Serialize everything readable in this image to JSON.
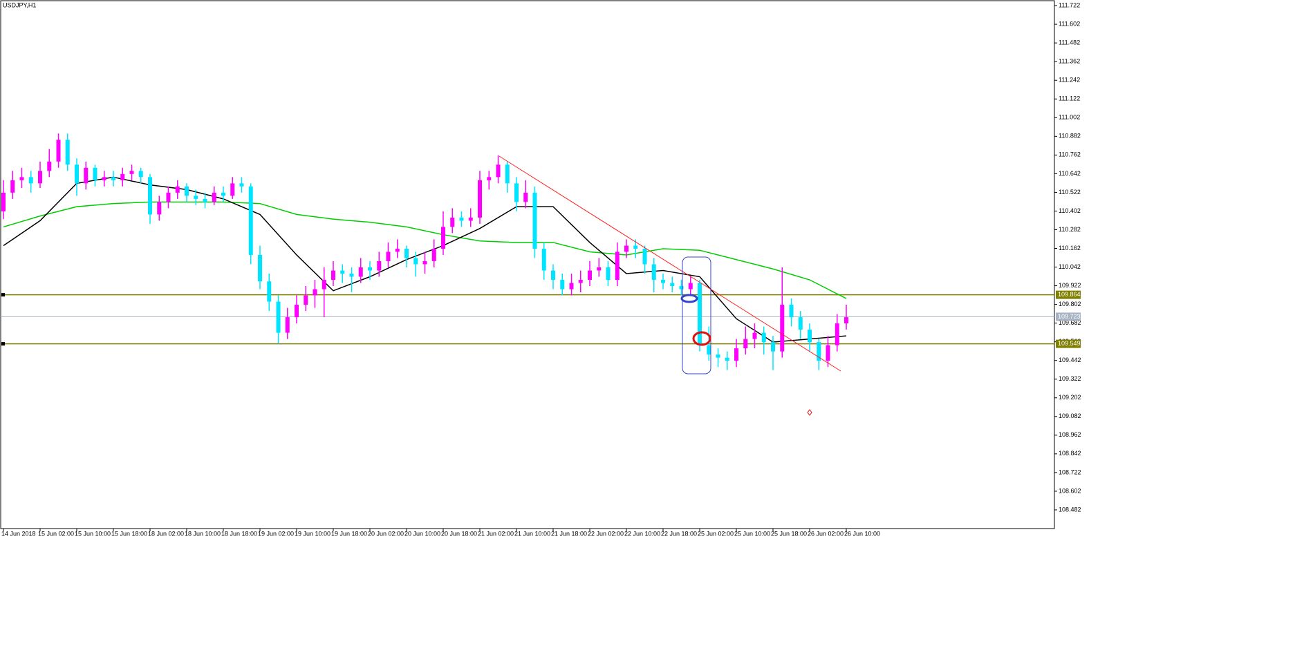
{
  "chart_data": {
    "type": "candlestick",
    "title": "USDJPY,H1",
    "up_color": "#ff00ff",
    "down_color": "#00e5ff",
    "ylim": [
      108.362,
      111.749
    ],
    "yticks": [
      111.722,
      111.602,
      111.482,
      111.362,
      111.242,
      111.122,
      111.002,
      110.882,
      110.762,
      110.642,
      110.522,
      110.402,
      110.282,
      110.162,
      110.042,
      109.922,
      109.802,
      109.682,
      109.562,
      109.442,
      109.322,
      109.202,
      109.082,
      108.962,
      108.842,
      108.722,
      108.602,
      108.482
    ],
    "xticks": [
      {
        "value": 0,
        "label": "14 Jun 2018"
      },
      {
        "value": 4,
        "label": "15 Jun 02:00"
      },
      {
        "value": 8,
        "label": "15 Jun 10:00"
      },
      {
        "value": 12,
        "label": "15 Jun 18:00"
      },
      {
        "value": 16,
        "label": "18 Jun 02:00"
      },
      {
        "value": 20,
        "label": "18 Jun 10:00"
      },
      {
        "value": 24,
        "label": "18 Jun 18:00"
      },
      {
        "value": 28,
        "label": "19 Jun 02:00"
      },
      {
        "value": 32,
        "label": "19 Jun 10:00"
      },
      {
        "value": 36,
        "label": "19 Jun 18:00"
      },
      {
        "value": 40,
        "label": "20 Jun 02:00"
      },
      {
        "value": 44,
        "label": "20 Jun 10:00"
      },
      {
        "value": 48,
        "label": "20 Jun 18:00"
      },
      {
        "value": 52,
        "label": "21 Jun 02:00"
      },
      {
        "value": 56,
        "label": "21 Jun 10:00"
      },
      {
        "value": 60,
        "label": "21 Jun 18:00"
      },
      {
        "value": 64,
        "label": "22 Jun 02:00"
      },
      {
        "value": 68,
        "label": "22 Jun 10:00"
      },
      {
        "value": 72,
        "label": "22 Jun 18:00"
      },
      {
        "value": 76,
        "label": "25 Jun 02:00"
      },
      {
        "value": 80,
        "label": "25 Jun 10:00"
      },
      {
        "value": 84,
        "label": "25 Jun 18:00"
      },
      {
        "value": 88,
        "label": "26 Jun 02:00"
      },
      {
        "value": 92,
        "label": "26 Jun 10:00"
      }
    ],
    "candles": [
      [
        110.4,
        110.6,
        110.35,
        110.52
      ],
      [
        110.52,
        110.66,
        110.48,
        110.6
      ],
      [
        110.6,
        110.68,
        110.55,
        110.62
      ],
      [
        110.62,
        110.66,
        110.52,
        110.58
      ],
      [
        110.58,
        110.72,
        110.55,
        110.66
      ],
      [
        110.66,
        110.8,
        110.62,
        110.72
      ],
      [
        110.72,
        110.9,
        110.68,
        110.86
      ],
      [
        110.86,
        110.9,
        110.66,
        110.7
      ],
      [
        110.7,
        110.74,
        110.5,
        110.58
      ],
      [
        110.58,
        110.72,
        110.54,
        110.68
      ],
      [
        110.68,
        110.7,
        110.56,
        110.6
      ],
      [
        110.6,
        110.66,
        110.56,
        110.62
      ],
      [
        110.62,
        110.66,
        110.56,
        110.6
      ],
      [
        110.6,
        110.68,
        110.56,
        110.64
      ],
      [
        110.64,
        110.7,
        110.6,
        110.66
      ],
      [
        110.66,
        110.68,
        110.58,
        110.62
      ],
      [
        110.62,
        110.64,
        110.32,
        110.38
      ],
      [
        110.38,
        110.5,
        110.34,
        110.46
      ],
      [
        110.46,
        110.56,
        110.42,
        110.52
      ],
      [
        110.52,
        110.6,
        110.48,
        110.56
      ],
      [
        110.56,
        110.58,
        110.46,
        110.5
      ],
      [
        110.5,
        110.54,
        110.44,
        110.48
      ],
      [
        110.48,
        110.52,
        110.42,
        110.46
      ],
      [
        110.46,
        110.56,
        110.44,
        110.52
      ],
      [
        110.52,
        110.56,
        110.46,
        110.5
      ],
      [
        110.5,
        110.62,
        110.48,
        110.58
      ],
      [
        110.58,
        110.62,
        110.52,
        110.56
      ],
      [
        110.56,
        110.58,
        110.06,
        110.12
      ],
      [
        110.12,
        110.18,
        109.9,
        109.95
      ],
      [
        109.95,
        110.0,
        109.76,
        109.82
      ],
      [
        109.82,
        109.86,
        109.55,
        109.62
      ],
      [
        109.62,
        109.78,
        109.58,
        109.72
      ],
      [
        109.72,
        109.86,
        109.68,
        109.8
      ],
      [
        109.8,
        109.92,
        109.76,
        109.86
      ],
      [
        109.86,
        109.96,
        109.78,
        109.9
      ],
      [
        109.9,
        110.04,
        109.72,
        109.96
      ],
      [
        109.96,
        110.08,
        109.92,
        110.02
      ],
      [
        110.02,
        110.06,
        109.94,
        110.0
      ],
      [
        110.0,
        110.04,
        109.88,
        109.98
      ],
      [
        109.98,
        110.1,
        109.94,
        110.04
      ],
      [
        110.04,
        110.08,
        109.96,
        110.02
      ],
      [
        110.02,
        110.14,
        109.98,
        110.08
      ],
      [
        110.08,
        110.2,
        110.04,
        110.14
      ],
      [
        110.14,
        110.22,
        110.1,
        110.16
      ],
      [
        110.16,
        110.18,
        110.04,
        110.1
      ],
      [
        110.1,
        110.14,
        109.98,
        110.06
      ],
      [
        110.06,
        110.14,
        110.0,
        110.08
      ],
      [
        110.08,
        110.22,
        110.04,
        110.16
      ],
      [
        110.16,
        110.4,
        110.12,
        110.3
      ],
      [
        110.3,
        110.42,
        110.26,
        110.36
      ],
      [
        110.36,
        110.4,
        110.3,
        110.34
      ],
      [
        110.34,
        110.42,
        110.3,
        110.36
      ],
      [
        110.36,
        110.66,
        110.32,
        110.6
      ],
      [
        110.6,
        110.66,
        110.54,
        110.62
      ],
      [
        110.62,
        110.76,
        110.58,
        110.7
      ],
      [
        110.7,
        110.72,
        110.52,
        110.58
      ],
      [
        110.58,
        110.62,
        110.4,
        110.46
      ],
      [
        110.46,
        110.6,
        110.42,
        110.52
      ],
      [
        110.52,
        110.56,
        110.1,
        110.16
      ],
      [
        110.16,
        110.2,
        109.96,
        110.02
      ],
      [
        110.02,
        110.06,
        109.9,
        109.96
      ],
      [
        109.96,
        110.0,
        109.86,
        109.9
      ],
      [
        109.9,
        110.0,
        109.86,
        109.94
      ],
      [
        109.94,
        110.02,
        109.88,
        109.96
      ],
      [
        109.96,
        110.08,
        109.92,
        110.02
      ],
      [
        110.02,
        110.1,
        109.98,
        110.04
      ],
      [
        110.04,
        110.08,
        109.92,
        109.96
      ],
      [
        109.96,
        110.2,
        109.92,
        110.14
      ],
      [
        110.14,
        110.22,
        110.1,
        110.18
      ],
      [
        110.18,
        110.22,
        110.1,
        110.16
      ],
      [
        110.16,
        110.18,
        110.0,
        110.06
      ],
      [
        110.06,
        110.1,
        109.88,
        109.96
      ],
      [
        109.96,
        110.0,
        109.9,
        109.94
      ],
      [
        109.94,
        109.98,
        109.88,
        109.92
      ],
      [
        109.92,
        109.96,
        109.86,
        109.9
      ],
      [
        109.9,
        109.98,
        109.86,
        109.94
      ],
      [
        109.94,
        109.96,
        109.5,
        109.54
      ],
      [
        109.54,
        109.66,
        109.44,
        109.48
      ],
      [
        109.48,
        109.52,
        109.4,
        109.46
      ],
      [
        109.46,
        109.5,
        109.38,
        109.44
      ],
      [
        109.44,
        109.58,
        109.4,
        109.52
      ],
      [
        109.52,
        109.66,
        109.48,
        109.58
      ],
      [
        109.58,
        109.68,
        109.52,
        109.62
      ],
      [
        109.62,
        109.66,
        109.48,
        109.56
      ],
      [
        109.56,
        109.6,
        109.38,
        109.5
      ],
      [
        109.5,
        110.04,
        109.46,
        109.8
      ],
      [
        109.8,
        109.84,
        109.66,
        109.72
      ],
      [
        109.72,
        109.76,
        109.58,
        109.64
      ],
      [
        109.64,
        109.68,
        109.5,
        109.56
      ],
      [
        109.56,
        109.58,
        109.38,
        109.44
      ],
      [
        109.44,
        109.6,
        109.4,
        109.54
      ],
      [
        109.54,
        109.74,
        109.5,
        109.68
      ],
      [
        109.68,
        109.8,
        109.64,
        109.72
      ]
    ],
    "overlays": [
      {
        "color": "#00cc00",
        "values": [
          110.3,
          110.37,
          110.43,
          110.45,
          110.46,
          110.46,
          110.46,
          110.45,
          110.38,
          110.35,
          110.33,
          110.3,
          110.25,
          110.21,
          110.2,
          110.2,
          110.14,
          110.12,
          110.16,
          110.15,
          110.09,
          110.03,
          109.96,
          109.84
        ]
      },
      {
        "color": "#000000",
        "values": [
          110.18,
          110.34,
          110.58,
          110.62,
          110.57,
          110.54,
          110.48,
          110.38,
          110.12,
          109.89,
          109.98,
          110.09,
          110.18,
          110.29,
          110.43,
          110.43,
          110.2,
          110.0,
          110.02,
          109.98,
          109.71,
          109.56,
          109.58,
          109.6
        ]
      }
    ],
    "hlines": [
      {
        "value": 109.864,
        "color": "#808000"
      },
      {
        "value": 109.723,
        "color": "#a8b4c4"
      },
      {
        "value": 109.549,
        "color": "#808000"
      }
    ]
  }
}
